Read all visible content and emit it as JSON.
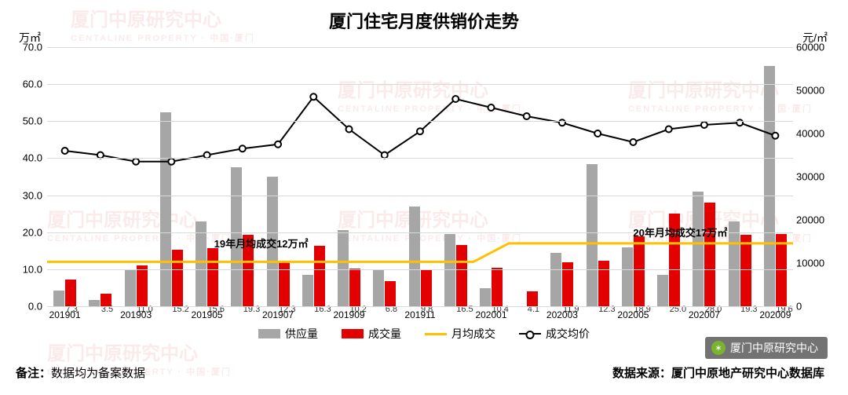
{
  "title": "厦门住宅月度供销价走势",
  "y_left_label": "万㎡",
  "y_right_label": "元/㎡",
  "y_left": {
    "min": 0,
    "max": 70,
    "step": 10
  },
  "y_right": {
    "min": 0,
    "max": 60000,
    "step": 10000
  },
  "periods": [
    {
      "label": "201901",
      "supply": 4.2,
      "deal": 7.3,
      "price": 36000
    },
    {
      "label": "",
      "supply": 1.7,
      "deal": 3.5,
      "price": 35000
    },
    {
      "label": "201903",
      "supply": 10.0,
      "deal": 11.0,
      "price": 33500
    },
    {
      "label": "",
      "supply": 52.5,
      "deal": 15.2,
      "price": 33500
    },
    {
      "label": "201905",
      "supply": 23.0,
      "deal": 15.6,
      "price": 35000
    },
    {
      "label": "",
      "supply": 37.5,
      "deal": 19.3,
      "price": 36500
    },
    {
      "label": "201907",
      "supply": 35.0,
      "deal": 12.3,
      "price": 37500
    },
    {
      "label": "",
      "supply": 8.5,
      "deal": 16.3,
      "price": 48500
    },
    {
      "label": "201909",
      "supply": 20.5,
      "deal": 10.2,
      "price": 41000
    },
    {
      "label": "",
      "supply": 10.0,
      "deal": 6.8,
      "price": 35000
    },
    {
      "label": "201911",
      "supply": 27.0,
      "deal": 9.8,
      "price": 40500
    },
    {
      "label": "",
      "supply": 19.5,
      "deal": 16.5,
      "price": 48000
    },
    {
      "label": "202001",
      "supply": 4.9,
      "deal": 10.4,
      "price": 46000
    },
    {
      "label": "",
      "supply": 0.0,
      "deal": 4.1,
      "price": 44000
    },
    {
      "label": "202003",
      "supply": 14.5,
      "deal": 11.9,
      "price": 42500
    },
    {
      "label": "",
      "supply": 38.5,
      "deal": 12.3,
      "price": 40000
    },
    {
      "label": "202005",
      "supply": 16.0,
      "deal": 18.9,
      "price": 38000
    },
    {
      "label": "",
      "supply": 8.5,
      "deal": 25.0,
      "price": 41000
    },
    {
      "label": "202007",
      "supply": 31.0,
      "deal": 28.0,
      "price": 42000
    },
    {
      "label": "",
      "supply": 23.0,
      "deal": 19.3,
      "price": 42500
    },
    {
      "label": "202009",
      "supply": 65.0,
      "deal": 19.6,
      "price": 39500
    }
  ],
  "monthly_avg_line": {
    "color": "#ffc000",
    "width": 3,
    "segments": [
      {
        "from": 0,
        "to": 11.5,
        "value": 12
      },
      {
        "from": 11.5,
        "to": 12.5,
        "value_from": 12,
        "value_to": 17
      },
      {
        "from": 12.5,
        "to": 20,
        "value": 17
      }
    ]
  },
  "price_line": {
    "color": "#000000",
    "width": 2,
    "marker_fill": "#ffffff",
    "marker_stroke": "#000000",
    "marker_r": 4
  },
  "annotations": [
    {
      "text": "19年月均成交12万㎡",
      "x_index": 4.2,
      "y_value": 19
    },
    {
      "text": "20年月均成交17万㎡",
      "x_index": 16.0,
      "y_value": 22
    }
  ],
  "legend": {
    "supply": "供应量",
    "deal": "成交量",
    "avg": "月均成交",
    "price": "成交均价"
  },
  "colors": {
    "supply_bar": "#a6a6a6",
    "deal_bar": "#e30000",
    "grid": "#d9d9d9",
    "background": "#ffffff"
  },
  "footer_left_prefix": "备注：",
  "footer_left_text": "数据均为备案数据",
  "footer_right": "数据来源：厦门中原地产研究中心数据库",
  "wechat_label": "厦门中原研究中心",
  "watermark_text": "厦门中原研究中心",
  "watermark_sub": "CENTALINE PROPERTY · 中国·厦门"
}
